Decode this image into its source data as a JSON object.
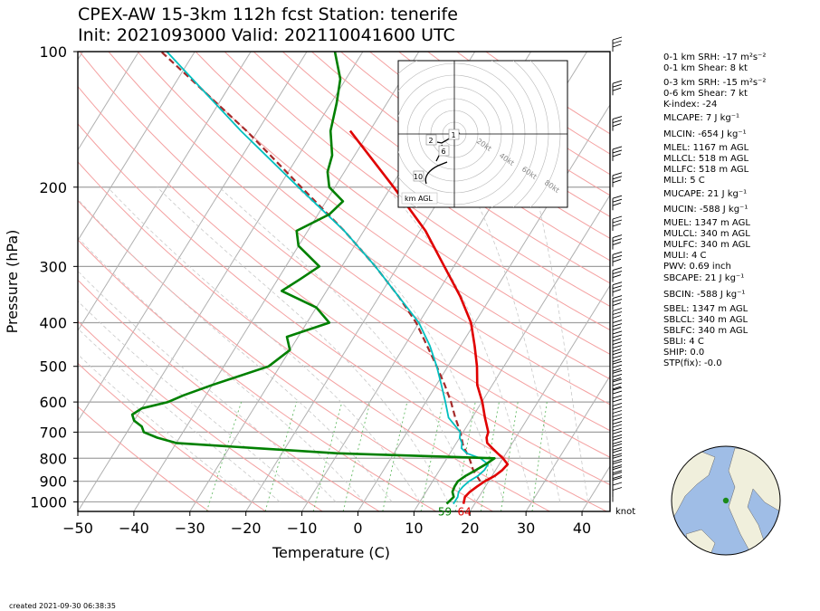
{
  "title_line1": "CPEX-AW 15-3km  112h fcst  Station: tenerife",
  "title_line2": "Init: 2021093000  Valid: 2021100416​00 UTC",
  "created": "created 2021-09-30 06:38:35",
  "wind_unit": "knot",
  "surface_labels": {
    "dewpoint": "59",
    "temperature": "64"
  },
  "hodograph": {
    "unit_label": "km AGL",
    "ring_labels": [
      "20kt",
      "40kt",
      "60kt",
      "80kt"
    ],
    "height_markers": [
      "1",
      "2",
      "6",
      "10"
    ]
  },
  "indices": [
    "0-1 km SRH: -17 m²s⁻²",
    "0-1 km Shear: 8 kt",
    "0-3 km SRH: -15 m²s⁻²",
    "0-6 km Shear: 7 kt",
    "K-index: -24",
    "MLCAPE: 7 J kg⁻¹",
    "MLCIN: -654 J kg⁻¹",
    "MLEL: 1167 m AGL",
    "MLLCL: 518 m AGL",
    "MLLFC: 518 m AGL",
    "MLLI: 5 C",
    "MUCAPE: 21 J kg⁻¹",
    "MUCIN: -588 J kg⁻¹",
    "MUEL: 1347 m AGL",
    "MULCL: 340 m AGL",
    "MULFC: 340 m AGL",
    "MULI: 4 C",
    "PWV: 0.69 inch",
    "SBCAPE: 21 J kg⁻¹",
    "SBCIN: -588 J kg⁻¹",
    "SBEL: 1347 m AGL",
    "SBLCL: 340 m AGL",
    "SBLFC: 340 m AGL",
    "SBLI: 4 C",
    "SHIP: 0.0",
    "STP(fix): -0.0"
  ],
  "colors": {
    "temperature": "#e00000",
    "dewpoint": "#008000",
    "wetbulb": "#00bfbf",
    "parcel": "#a52a2a",
    "isobar": "#a0a0a0",
    "isotherm": "#b0b0b0",
    "dry_adiabat": "#f4a0a0",
    "moist_adiabat": "#c8c8c8",
    "mixing_ratio": "#66bb66",
    "land": "#f0efdc",
    "ocean": "#9fbde6"
  },
  "chart_data": {
    "type": "line",
    "chart_kind": "skew-T log-P sounding",
    "xlabel": "Temperature (C)",
    "ylabel": "Pressure (hPa)",
    "xlim": [
      -50,
      45
    ],
    "ylim": [
      1050,
      100
    ],
    "y_scale": "log",
    "x_ticks": [
      -50,
      -40,
      -30,
      -20,
      -10,
      0,
      10,
      20,
      30,
      40
    ],
    "y_ticks": [
      100,
      200,
      300,
      400,
      500,
      600,
      700,
      800,
      900,
      1000
    ],
    "series": [
      {
        "key": "temperature",
        "pressure": [
          1010,
          975,
          950,
          925,
          900,
          875,
          850,
          825,
          800,
          780,
          760,
          740,
          720,
          700,
          650,
          600,
          550,
          500,
          450,
          400,
          350,
          300,
          250,
          200,
          150
        ],
        "values": [
          18.0,
          17.5,
          17.8,
          18.5,
          19.3,
          20.5,
          21.2,
          21.5,
          20.0,
          18.5,
          17.0,
          15.5,
          14.8,
          14.5,
          12.3,
          10.1,
          7.3,
          5.2,
          2.5,
          -0.7,
          -5.5,
          -11.7,
          -19.0,
          -29.5,
          -43.5
        ]
      },
      {
        "key": "dewpoint",
        "pressure": [
          1010,
          975,
          950,
          925,
          900,
          875,
          850,
          825,
          800,
          780,
          760,
          740,
          720,
          700,
          680,
          660,
          640,
          620,
          600,
          580,
          550,
          500,
          460,
          430,
          400,
          370,
          340,
          320,
          300,
          270,
          250,
          230,
          215,
          200,
          185,
          170,
          150,
          130,
          115,
          100
        ],
        "values": [
          15.0,
          15.5,
          14.7,
          14.5,
          14.5,
          15.3,
          16.5,
          17.6,
          18.5,
          -10.0,
          -25.0,
          -40.0,
          -44.0,
          -47.0,
          -48.0,
          -50.0,
          -51.0,
          -50.0,
          -46.0,
          -44.0,
          -40.0,
          -32.0,
          -30.0,
          -32.0,
          -26.0,
          -30.0,
          -38.0,
          -36.0,
          -34.0,
          -40.0,
          -42.0,
          -38.0,
          -37.0,
          -41.0,
          -43.0,
          -44.0,
          -47.0,
          -49.0,
          -51.0,
          -55.0
        ]
      },
      {
        "key": "wetbulb",
        "pressure": [
          1010,
          975,
          950,
          925,
          900,
          875,
          850,
          825,
          800,
          780,
          760,
          740,
          720,
          700,
          650,
          600,
          550,
          500,
          450,
          400,
          350,
          300,
          250,
          200,
          150,
          100
        ],
        "values": [
          16.2,
          16.2,
          15.8,
          16.0,
          16.5,
          17.5,
          18.0,
          18.0,
          16.0,
          13.0,
          11.5,
          11.0,
          10.0,
          9.5,
          5.8,
          3.5,
          0.9,
          -2.0,
          -5.5,
          -10.0,
          -16.5,
          -24.0,
          -33.5,
          -46.5,
          -63.0,
          -85.0
        ]
      },
      {
        "key": "parcel",
        "pressure": [
          900,
          850,
          800,
          750,
          700,
          650,
          600,
          550,
          500,
          450,
          400,
          350,
          300,
          250,
          200,
          150,
          100
        ],
        "values": [
          18.5,
          16.0,
          14.0,
          11.5,
          9.5,
          7.0,
          4.5,
          1.5,
          -2.0,
          -6.0,
          -10.5,
          -16.5,
          -24.0,
          -33.5,
          -46.0,
          -62.0,
          -86.0
        ]
      }
    ]
  }
}
